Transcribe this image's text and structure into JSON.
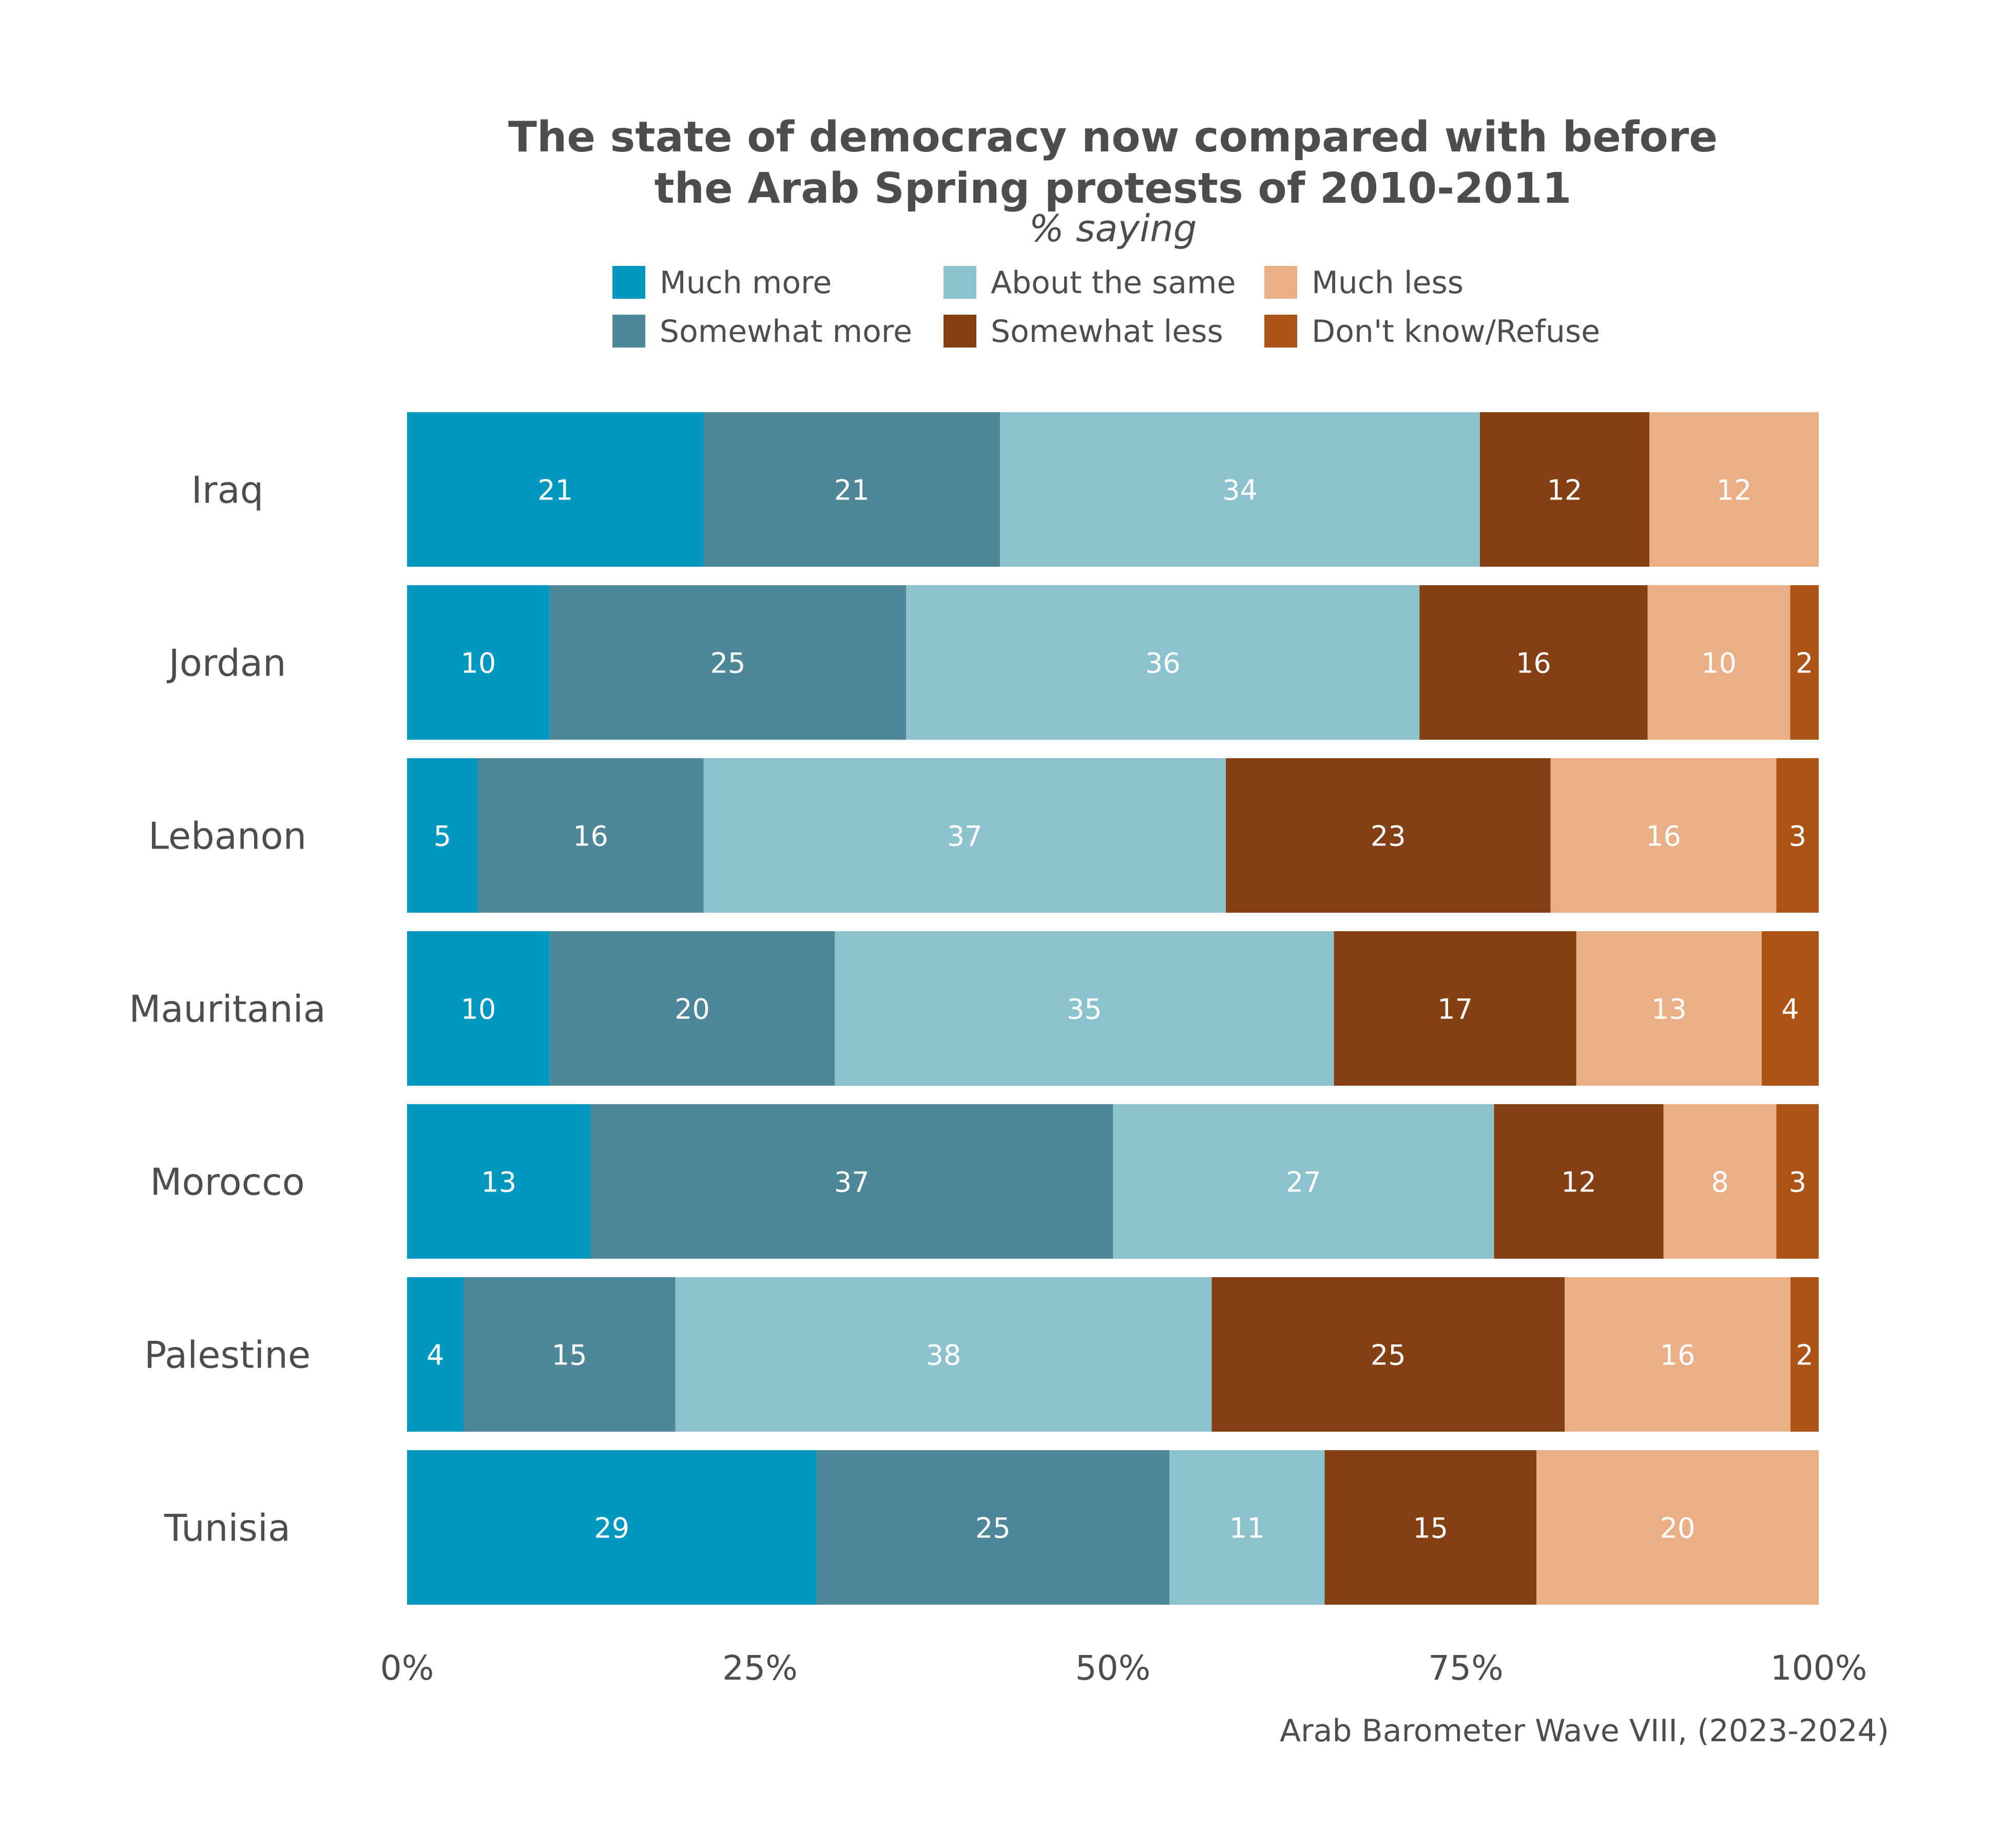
{
  "chart_data": {
    "type": "bar",
    "orientation": "horizontal",
    "stacked": "percent",
    "title_lines": [
      "The state of democracy now compared with before",
      "the Arab Spring protests of 2010-2011"
    ],
    "subtitle": "% saying",
    "caption": "Arab Barometer Wave VIII, (2023-2024)",
    "xlim": [
      0,
      100
    ],
    "x_ticks": [
      "0%",
      "25%",
      "50%",
      "75%",
      "100%"
    ],
    "legend_position": "top",
    "categories": [
      "Iraq",
      "Jordan",
      "Lebanon",
      "Mauritania",
      "Morocco",
      "Palestine",
      "Tunisia"
    ],
    "series": [
      {
        "name": "Much more",
        "color": "#0098c0",
        "values": [
          21,
          10,
          5,
          10,
          13,
          4,
          29
        ]
      },
      {
        "name": "Somewhat more",
        "color": "#4e8797",
        "values": [
          21,
          25,
          16,
          20,
          37,
          15,
          25
        ]
      },
      {
        "name": "About the same",
        "color": "#8bc2cd",
        "values": [
          34,
          36,
          37,
          35,
          27,
          38,
          11
        ]
      },
      {
        "name": "Somewhat less",
        "color": "#843f12",
        "values": [
          12,
          16,
          23,
          17,
          12,
          25,
          15
        ]
      },
      {
        "name": "Much less",
        "color": "#ebaf87",
        "values": [
          12,
          10,
          16,
          13,
          8,
          16,
          20
        ]
      },
      {
        "name": "Don't know/Refuse",
        "color": "#ab5416",
        "values": [
          0,
          2,
          3,
          4,
          3,
          2,
          0
        ]
      }
    ]
  }
}
